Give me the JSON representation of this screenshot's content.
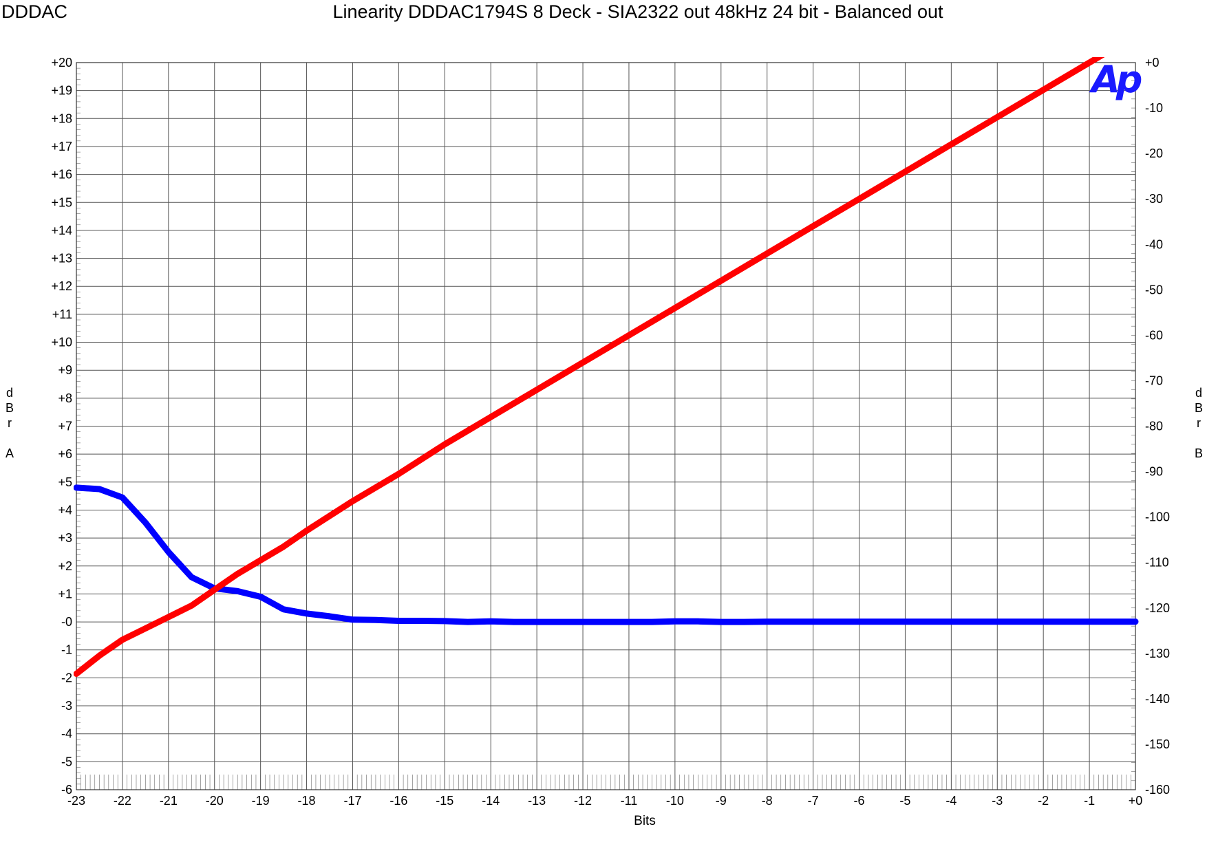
{
  "header": {
    "brand": "DDDAC",
    "title": "Linearity DDDAC1794S 8 Deck - SIA2322 out 48kHz 24 bit - Balanced out"
  },
  "logo": {
    "text": "Ap",
    "color": "#1a1aff"
  },
  "chart_data": {
    "type": "line",
    "xlabel": "Bits",
    "ylabel_left": [
      "d",
      "B",
      "r",
      "",
      "A"
    ],
    "ylabel_right": [
      "d",
      "B",
      "r",
      "",
      "B"
    ],
    "xlim": [
      -23,
      0
    ],
    "ylim_left": [
      -6,
      20
    ],
    "ylim_right": [
      -160,
      0
    ],
    "grid": true,
    "x_ticks": [
      "-23",
      "-22",
      "-21",
      "-20",
      "-19",
      "-18",
      "-17",
      "-16",
      "-15",
      "-14",
      "-13",
      "-12",
      "-11",
      "-10",
      "-9",
      "-8",
      "-7",
      "-6",
      "-5",
      "-4",
      "-3",
      "-2",
      "-1",
      "+0"
    ],
    "y_left_ticks": [
      "+20",
      "+19",
      "+18",
      "+17",
      "+16",
      "+15",
      "+14",
      "+13",
      "+12",
      "+11",
      "+10",
      "+9",
      "+8",
      "+7",
      "+6",
      "+5",
      "+4",
      "+3",
      "+2",
      "+1",
      "-0",
      "-1",
      "-2",
      "-3",
      "-4",
      "-5",
      "-6"
    ],
    "y_right_ticks": [
      "+0",
      "-10",
      "-20",
      "-30",
      "-40",
      "-50",
      "-60",
      "-70",
      "-80",
      "-90",
      "-100",
      "-110",
      "-120",
      "-130",
      "-140",
      "-150",
      "-160"
    ],
    "series": [
      {
        "axis": "left",
        "color": "#0000ff",
        "points": [
          [
            -23,
            4.8
          ],
          [
            -22.5,
            4.75
          ],
          [
            -22,
            4.45
          ],
          [
            -21.5,
            3.55
          ],
          [
            -21,
            2.5
          ],
          [
            -20.5,
            1.6
          ],
          [
            -20,
            1.2
          ],
          [
            -19.5,
            1.1
          ],
          [
            -19,
            0.9
          ],
          [
            -18.5,
            0.45
          ],
          [
            -18,
            0.3
          ],
          [
            -17.5,
            0.2
          ],
          [
            -17,
            0.08
          ],
          [
            -16.5,
            0.07
          ],
          [
            -16,
            0.04
          ],
          [
            -15.5,
            0.04
          ],
          [
            -15,
            0.03
          ],
          [
            -14.5,
            0.0
          ],
          [
            -14,
            0.02
          ],
          [
            -13.5,
            0.0
          ],
          [
            -13,
            0.0
          ],
          [
            -12,
            0.0
          ],
          [
            -11,
            0.0
          ],
          [
            -10.5,
            0.0
          ],
          [
            -10,
            0.02
          ],
          [
            -9.5,
            0.02
          ],
          [
            -9,
            0.0
          ],
          [
            -8.5,
            0.0
          ],
          [
            -8,
            0.01
          ],
          [
            -7,
            0.01
          ],
          [
            -6,
            0.01
          ],
          [
            -5,
            0.01
          ],
          [
            -4,
            0.01
          ],
          [
            -3,
            0.01
          ],
          [
            -2,
            0.01
          ],
          [
            -1,
            0.01
          ],
          [
            0,
            0.01
          ]
        ]
      },
      {
        "axis": "right",
        "color": "#ff0000",
        "points": [
          [
            -23,
            -134.5
          ],
          [
            -22.5,
            -130.5
          ],
          [
            -22,
            -127
          ],
          [
            -21.5,
            -124.5
          ],
          [
            -21,
            -122
          ],
          [
            -20.5,
            -119.5
          ],
          [
            -20,
            -116
          ],
          [
            -19.5,
            -112.5
          ],
          [
            -19,
            -109.5
          ],
          [
            -18.5,
            -106.5
          ],
          [
            -18,
            -103
          ],
          [
            -17,
            -96.5
          ],
          [
            -16,
            -90.5
          ],
          [
            -15,
            -84
          ],
          [
            -14,
            -78
          ],
          [
            -13,
            -72
          ],
          [
            -12,
            -66
          ],
          [
            -11,
            -60
          ],
          [
            -10,
            -54
          ],
          [
            -9,
            -48
          ],
          [
            -8,
            -42
          ],
          [
            -7,
            -36
          ],
          [
            -6,
            -30
          ],
          [
            -5,
            -24
          ],
          [
            -4,
            -18
          ],
          [
            -3,
            -12
          ],
          [
            -2,
            -6
          ],
          [
            -1,
            0
          ],
          [
            0,
            6
          ]
        ]
      }
    ]
  }
}
